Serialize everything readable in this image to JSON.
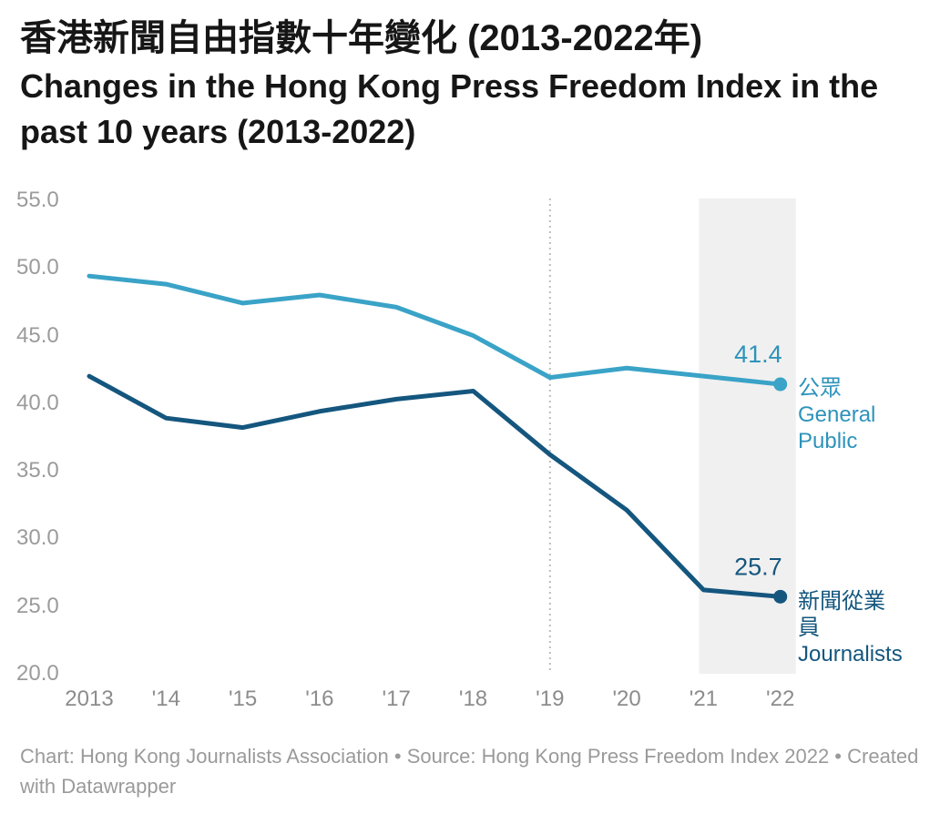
{
  "chart_data": {
    "type": "line",
    "title_zh": "香港新聞自由指數十年變化 (2013-2022年)",
    "title_en": "Changes in the Hong Kong Press Freedom Index in the past 10 years (2013-2022)",
    "x": [
      2013,
      2014,
      2015,
      2016,
      2017,
      2018,
      2019,
      2020,
      2021,
      2022
    ],
    "x_tick_labels": [
      "2013",
      "'14",
      "'15",
      "'16",
      "'17",
      "'18",
      "'19",
      "'20",
      "'21",
      "'22"
    ],
    "y_ticks": [
      "55.0",
      "50.0",
      "45.0",
      "40.0",
      "35.0",
      "30.0",
      "25.0",
      "20.0"
    ],
    "ylim": [
      20,
      55
    ],
    "grid": "off",
    "legend_position": "right-of-line-ends",
    "series": [
      {
        "id": "general-public",
        "name": "公眾 General Public",
        "color": "#3aa3c7",
        "label_color": "#2d93ba",
        "end_label": "41.4",
        "values": [
          49.4,
          48.8,
          47.4,
          48.0,
          47.1,
          45.0,
          41.9,
          42.6,
          42.0,
          41.4
        ]
      },
      {
        "id": "journalists",
        "name": "新聞從業員 Journalists",
        "color": "#14567e",
        "label_color": "#14567e",
        "end_label": "25.7",
        "values": [
          42.0,
          38.9,
          38.2,
          39.4,
          40.3,
          40.9,
          36.2,
          32.1,
          26.2,
          25.7
        ]
      }
    ],
    "annotations": {
      "dotted_vline_year": 2019,
      "highlight_band_years": [
        2021,
        2022
      ],
      "band_color": "#f0f0f0"
    }
  },
  "footer": {
    "text": "Chart: Hong Kong Journalists Association • Source: Hong Kong Press Freedom Index 2022 • Created with Datawrapper"
  }
}
